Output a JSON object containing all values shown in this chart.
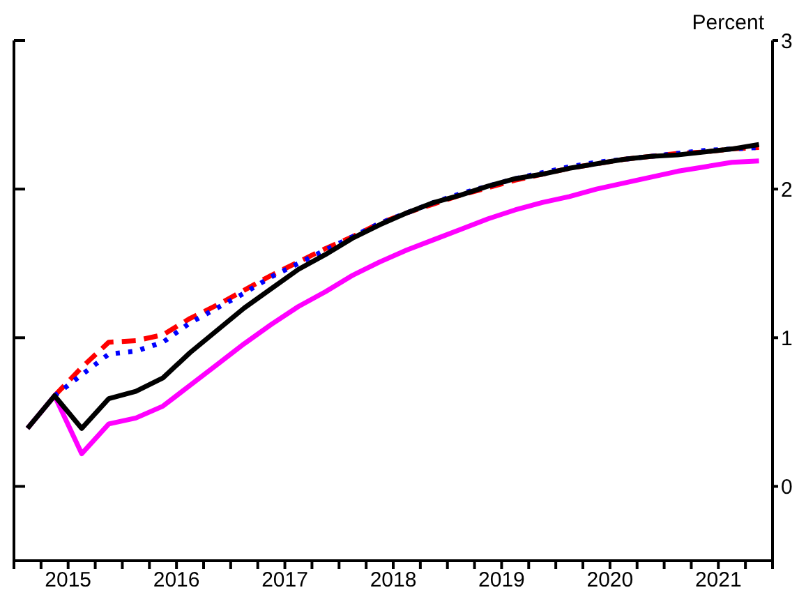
{
  "chart_data": {
    "type": "line",
    "ylabel": "Percent",
    "x": [
      2015.125,
      2015.375,
      2015.625,
      2015.875,
      2016.125,
      2016.375,
      2016.625,
      2016.875,
      2017.125,
      2017.375,
      2017.625,
      2017.875,
      2018.125,
      2018.375,
      2018.625,
      2018.875,
      2019.125,
      2019.375,
      2019.625,
      2019.875,
      2020.125,
      2020.375,
      2020.625,
      2020.875,
      2021.125,
      2021.375,
      2021.625,
      2021.875
    ],
    "series": [
      {
        "color": "#ff00ff",
        "line_style": "solid",
        "values": [
          0.39,
          0.61,
          0.22,
          0.42,
          0.46,
          0.54,
          0.68,
          0.82,
          0.96,
          1.09,
          1.21,
          1.31,
          1.42,
          1.51,
          1.59,
          1.66,
          1.73,
          1.8,
          1.86,
          1.91,
          1.95,
          2.0,
          2.04,
          2.08,
          2.12,
          2.15,
          2.18,
          2.19
        ]
      },
      {
        "color": "#ff0000",
        "line_style": "dashed",
        "values": [
          null,
          0.61,
          0.8,
          0.97,
          0.98,
          1.02,
          1.13,
          1.22,
          1.32,
          1.42,
          1.51,
          1.6,
          1.68,
          1.77,
          1.84,
          1.9,
          1.96,
          2.01,
          2.06,
          2.1,
          2.14,
          2.17,
          2.2,
          2.22,
          2.24,
          2.25,
          2.27,
          2.28
        ]
      },
      {
        "color": "#0000ff",
        "line_style": "dotted",
        "values": [
          null,
          0.61,
          0.75,
          0.89,
          0.91,
          0.97,
          1.1,
          1.2,
          1.3,
          1.41,
          1.5,
          1.59,
          1.68,
          1.77,
          1.84,
          1.91,
          1.97,
          2.02,
          2.07,
          2.11,
          2.15,
          2.18,
          2.2,
          2.22,
          2.24,
          2.26,
          2.27,
          2.28
        ]
      },
      {
        "color": "#000000",
        "line_style": "solid",
        "values": [
          0.39,
          0.61,
          0.39,
          0.59,
          0.64,
          0.73,
          0.9,
          1.05,
          1.2,
          1.33,
          1.46,
          1.56,
          1.67,
          1.76,
          1.84,
          1.91,
          1.96,
          2.02,
          2.07,
          2.1,
          2.14,
          2.17,
          2.2,
          2.22,
          2.23,
          2.25,
          2.27,
          2.3
        ]
      }
    ],
    "xlim": [
      2015,
      2022
    ],
    "xticks": [
      {
        "value": 2015,
        "label": null
      },
      {
        "value": 2015.25,
        "label": null
      },
      {
        "value": 2015.5,
        "label": "2015"
      },
      {
        "value": 2015.75,
        "label": null
      },
      {
        "value": 2016,
        "label": null
      },
      {
        "value": 2016.25,
        "label": null
      },
      {
        "value": 2016.5,
        "label": "2016"
      },
      {
        "value": 2016.75,
        "label": null
      },
      {
        "value": 2017,
        "label": null
      },
      {
        "value": 2017.25,
        "label": null
      },
      {
        "value": 2017.5,
        "label": "2017"
      },
      {
        "value": 2017.75,
        "label": null
      },
      {
        "value": 2018,
        "label": null
      },
      {
        "value": 2018.25,
        "label": null
      },
      {
        "value": 2018.5,
        "label": "2018"
      },
      {
        "value": 2018.75,
        "label": null
      },
      {
        "value": 2019,
        "label": null
      },
      {
        "value": 2019.25,
        "label": null
      },
      {
        "value": 2019.5,
        "label": "2019"
      },
      {
        "value": 2019.75,
        "label": null
      },
      {
        "value": 2020,
        "label": null
      },
      {
        "value": 2020.25,
        "label": null
      },
      {
        "value": 2020.5,
        "label": "2020"
      },
      {
        "value": 2020.75,
        "label": null
      },
      {
        "value": 2021,
        "label": null
      },
      {
        "value": 2021.25,
        "label": null
      },
      {
        "value": 2021.5,
        "label": "2021"
      },
      {
        "value": 2021.75,
        "label": null
      },
      {
        "value": 2022,
        "label": null
      }
    ],
    "ylim": [
      -0.5,
      3
    ],
    "yticks": [
      0,
      1,
      2,
      3
    ],
    "grid": false,
    "legend": false,
    "marker": "none"
  }
}
